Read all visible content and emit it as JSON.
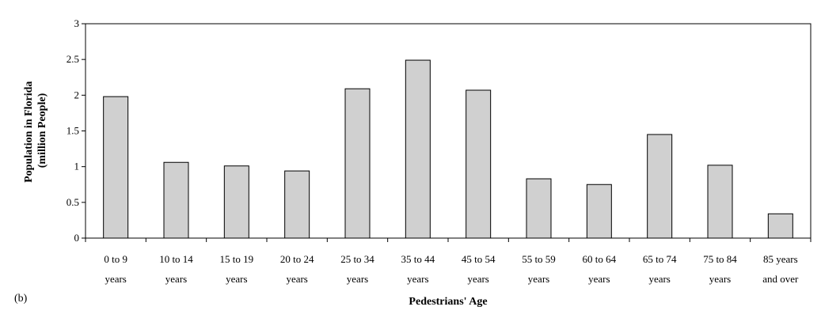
{
  "panel_label": "(b)",
  "chart_data": {
    "type": "bar",
    "title": "",
    "categories": [
      [
        "0 to 9",
        "years"
      ],
      [
        "10 to 14",
        "years"
      ],
      [
        "15 to 19",
        "years"
      ],
      [
        "20 to 24",
        "years"
      ],
      [
        "25 to 34",
        "years"
      ],
      [
        "35 to 44",
        "years"
      ],
      [
        "45 to 54",
        "years"
      ],
      [
        "55 to 59",
        "years"
      ],
      [
        "60 to 64",
        "years"
      ],
      [
        "65 to 74",
        "years"
      ],
      [
        "75 to 84",
        "years"
      ],
      [
        "85 years",
        "and over"
      ]
    ],
    "values": [
      1.98,
      1.06,
      1.01,
      0.94,
      2.09,
      2.49,
      2.07,
      0.83,
      0.75,
      1.45,
      1.02,
      0.34
    ],
    "xlabel": "Pedestrians' Age",
    "ylabel": [
      "Population in Florida",
      "(million People)"
    ],
    "ylim": [
      0,
      3
    ],
    "yticks": [
      "0",
      "0.5",
      "1",
      "1.5",
      "2",
      "2.5",
      "3"
    ],
    "grid": false,
    "legend": "none",
    "colors": {
      "bar_fill": "#d0d0d0",
      "bar_stroke": "#000000",
      "axis": "#000000"
    }
  }
}
